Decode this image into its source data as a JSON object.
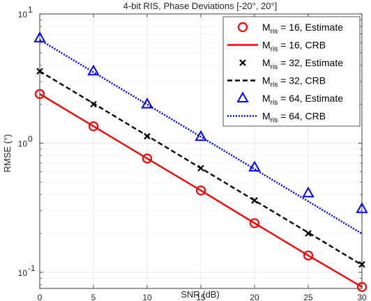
{
  "chart_data": {
    "type": "line",
    "title": "4-bit RIS, Phase Deviations [-20°, 20°]",
    "xlabel": "SNR (dB)",
    "ylabel": "RMSE (°)",
    "xlim": [
      0,
      30
    ],
    "ylim": [
      0.075,
      10
    ],
    "yscale": "log",
    "grid": true,
    "legend_position": "top-right",
    "x_ticks": [
      "0",
      "5",
      "10",
      "15",
      "20",
      "25",
      "30"
    ],
    "x_tick_values": [
      0,
      5,
      10,
      15,
      20,
      25,
      30
    ],
    "y_tick_values": [
      0.1,
      1,
      10
    ],
    "y_tick_labels": [
      {
        "base": "10",
        "exp": "-1"
      },
      {
        "base": "10",
        "exp": "0"
      },
      {
        "base": "10",
        "exp": "1"
      }
    ],
    "series": [
      {
        "name": "M_ris = 16, Estimate",
        "legend_prefix": "M",
        "legend_sub": "ris",
        "legend_suffix": " = 16, Estimate",
        "style": "markers",
        "marker": "circle",
        "color": "#ff0000",
        "x": [
          0,
          5,
          10,
          15,
          20,
          25,
          30
        ],
        "y": [
          2.4,
          1.35,
          0.76,
          0.43,
          0.24,
          0.135,
          0.077
        ]
      },
      {
        "name": "M_ris = 16, CRB",
        "legend_prefix": "M",
        "legend_sub": "ris",
        "legend_suffix": " = 16, CRB",
        "style": "solid",
        "color": "#ff0000",
        "x": [
          0,
          5,
          10,
          15,
          20,
          25,
          30
        ],
        "y": [
          2.4,
          1.35,
          0.76,
          0.43,
          0.24,
          0.135,
          0.077
        ]
      },
      {
        "name": "M_ris = 32, Estimate",
        "legend_prefix": "M",
        "legend_sub": "ris",
        "legend_suffix": " = 32, Estimate",
        "style": "markers",
        "marker": "x",
        "color": "#000000",
        "x": [
          0,
          5,
          10,
          15,
          20,
          25,
          30
        ],
        "y": [
          3.6,
          2.0,
          1.13,
          0.64,
          0.36,
          0.2,
          0.115
        ]
      },
      {
        "name": "M_ris = 32, CRB",
        "legend_prefix": "M",
        "legend_sub": "ris",
        "legend_suffix": " = 32, CRB",
        "style": "dashed",
        "color": "#000000",
        "x": [
          0,
          5,
          10,
          15,
          20,
          25,
          30
        ],
        "y": [
          3.6,
          2.03,
          1.14,
          0.64,
          0.36,
          0.203,
          0.114
        ]
      },
      {
        "name": "M_ris = 64, Estimate",
        "legend_prefix": "M",
        "legend_sub": "ris",
        "legend_suffix": " = 64, Estimate",
        "style": "markers",
        "marker": "triangle",
        "color": "#0000ff",
        "x": [
          0,
          5,
          10,
          15,
          20,
          25,
          30
        ],
        "y": [
          6.5,
          3.6,
          2.0,
          1.12,
          0.65,
          0.41,
          0.31
        ]
      },
      {
        "name": "M_ris = 64, CRB",
        "legend_prefix": "M",
        "legend_sub": "ris",
        "legend_suffix": " = 64, CRB",
        "style": "dotted",
        "color": "#0000ff",
        "x": [
          0,
          5,
          10,
          15,
          20,
          25,
          30
        ],
        "y": [
          6.3,
          3.54,
          1.99,
          1.12,
          0.63,
          0.354,
          0.199
        ]
      }
    ]
  }
}
